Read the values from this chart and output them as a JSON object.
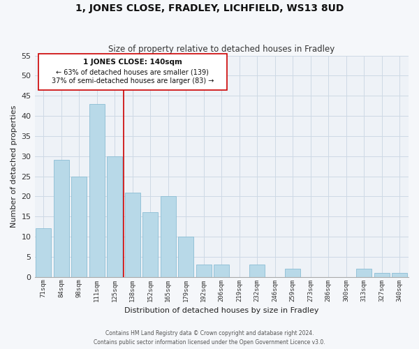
{
  "title": "1, JONES CLOSE, FRADLEY, LICHFIELD, WS13 8UD",
  "subtitle": "Size of property relative to detached houses in Fradley",
  "xlabel": "Distribution of detached houses by size in Fradley",
  "ylabel": "Number of detached properties",
  "bar_labels": [
    "71sqm",
    "84sqm",
    "98sqm",
    "111sqm",
    "125sqm",
    "138sqm",
    "152sqm",
    "165sqm",
    "179sqm",
    "192sqm",
    "206sqm",
    "219sqm",
    "232sqm",
    "246sqm",
    "259sqm",
    "273sqm",
    "286sqm",
    "300sqm",
    "313sqm",
    "327sqm",
    "340sqm"
  ],
  "bar_values": [
    12,
    29,
    25,
    43,
    30,
    21,
    16,
    20,
    10,
    3,
    3,
    0,
    3,
    0,
    2,
    0,
    0,
    0,
    2,
    1,
    1
  ],
  "bar_color": "#b8d9e8",
  "bar_edge_color": "#8bbdd4",
  "highlight_color": "#cc0000",
  "ylim": [
    0,
    55
  ],
  "yticks": [
    0,
    5,
    10,
    15,
    20,
    25,
    30,
    35,
    40,
    45,
    50,
    55
  ],
  "annotation_title": "1 JONES CLOSE: 140sqm",
  "annotation_line1": "← 63% of detached houses are smaller (139)",
  "annotation_line2": "37% of semi-detached houses are larger (83) →",
  "grid_color": "#cdd9e5",
  "bg_color": "#eef2f7",
  "fig_bg_color": "#f5f7fa",
  "footer_line1": "Contains HM Land Registry data © Crown copyright and database right 2024.",
  "footer_line2": "Contains public sector information licensed under the Open Government Licence v3.0."
}
